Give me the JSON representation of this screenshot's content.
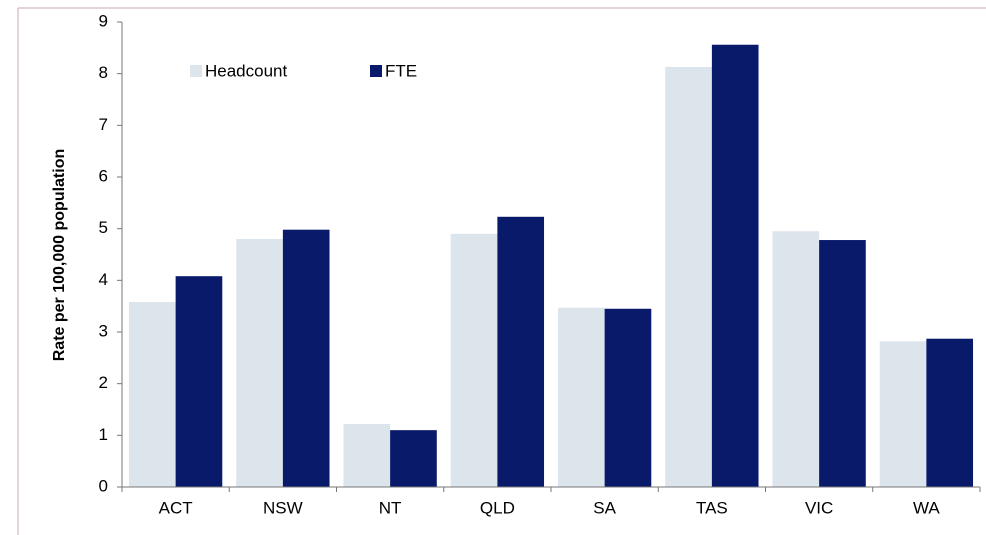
{
  "chart_data": {
    "type": "bar",
    "y_label": "Rate per 100,000 population",
    "categories": [
      "ACT",
      "NSW",
      "NT",
      "QLD",
      "SA",
      "TAS",
      "VIC",
      "WA"
    ],
    "series": [
      {
        "name": "Headcount",
        "color": "#dce4ec",
        "values": [
          3.58,
          4.8,
          1.22,
          4.9,
          3.47,
          8.13,
          4.95,
          2.82
        ]
      },
      {
        "name": "FTE",
        "color": "#0a1a6b",
        "values": [
          4.08,
          4.98,
          1.1,
          5.23,
          3.45,
          8.56,
          4.78,
          2.87
        ]
      }
    ],
    "ylim": [
      0,
      9
    ],
    "yticks": [
      0,
      1,
      2,
      3,
      4,
      5,
      6,
      7,
      8,
      9
    ],
    "grid": false,
    "legend": "top-left"
  }
}
